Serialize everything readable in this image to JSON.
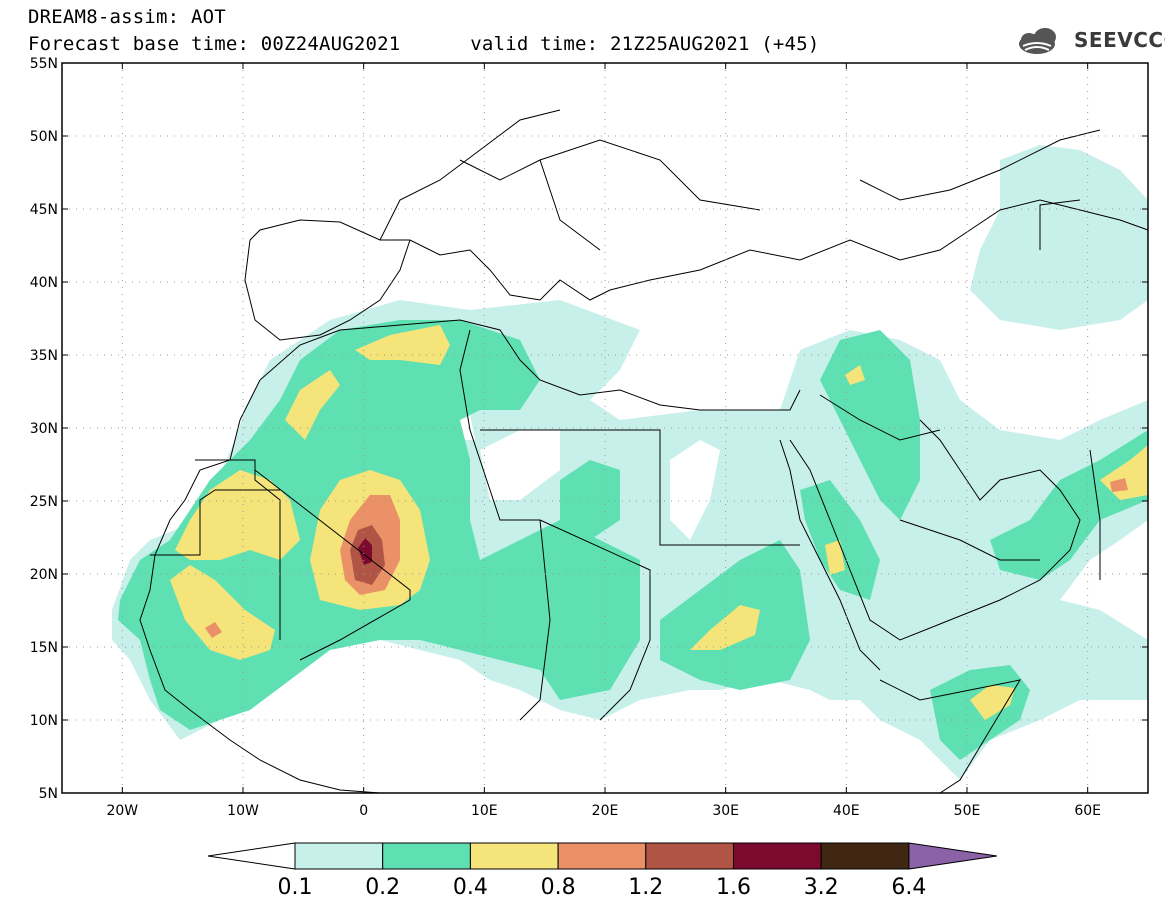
{
  "header": {
    "line1": "DREAM8-assim: AOT",
    "forecast_base": "Forecast base time: 00Z24AUG2021",
    "valid_time": "valid time: 21Z25AUG2021 (+45)"
  },
  "logo": {
    "text": "SEEVCCC",
    "icon": "cloud-icon"
  },
  "map": {
    "lon_range": [
      -25,
      65
    ],
    "lat_range": [
      5,
      55
    ],
    "lat_ticks": [
      "55N",
      "50N",
      "45N",
      "40N",
      "35N",
      "30N",
      "25N",
      "20N",
      "15N",
      "10N",
      "5N"
    ],
    "lon_ticks": [
      "20W",
      "10W",
      "0",
      "10E",
      "20E",
      "30E",
      "40E",
      "50E",
      "60E"
    ]
  },
  "colorbar": {
    "labels": [
      "0.1",
      "0.2",
      "0.4",
      "0.8",
      "1.2",
      "1.6",
      "3.2",
      "6.4"
    ],
    "colors": [
      "#ffffff",
      "#c8f0ea",
      "#5fe0b3",
      "#f4e47a",
      "#ea9168",
      "#b05546",
      "#7b0a2e",
      "#3f2713",
      "#8a62a8"
    ]
  }
}
